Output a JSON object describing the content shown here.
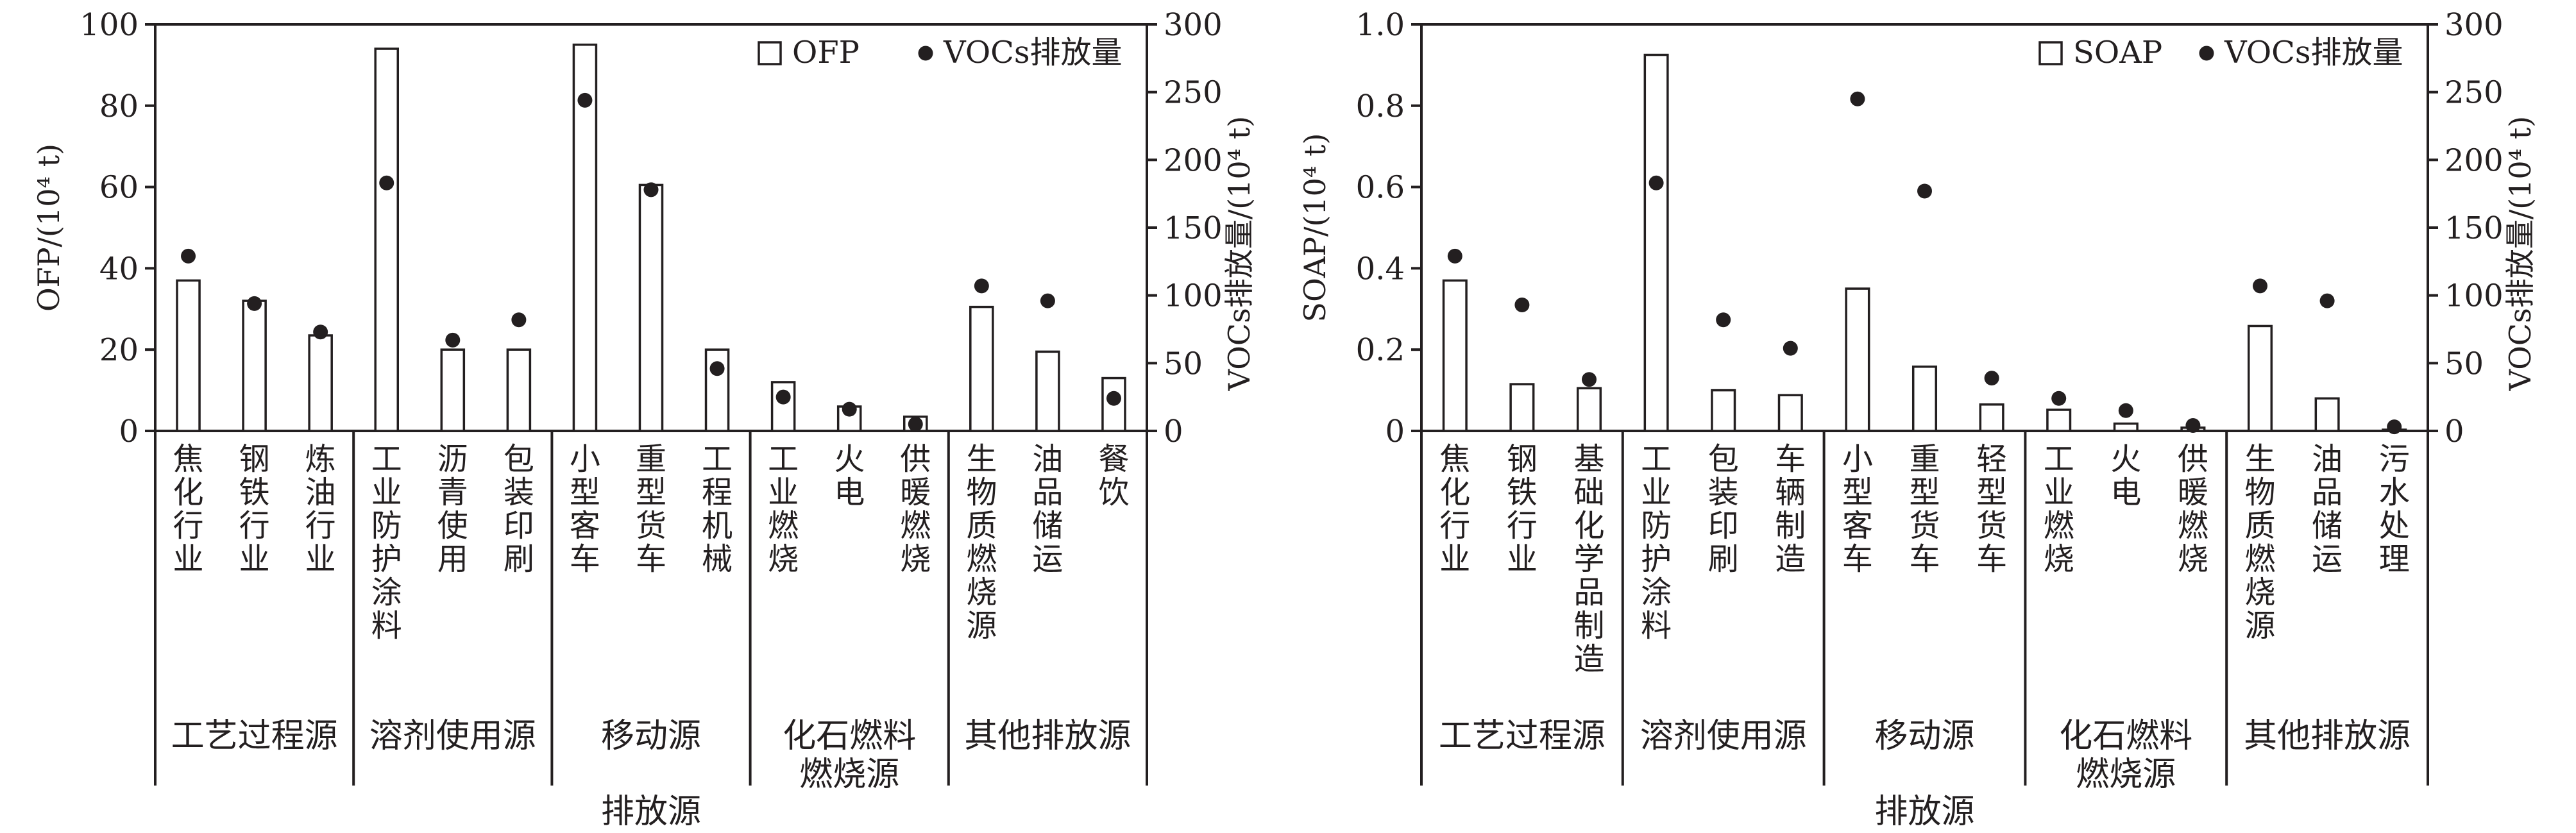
{
  "chart_data": [
    {
      "type": "bar",
      "title": "",
      "ylabel": "OFP/(10⁴ t)",
      "y2label": "VOCs排放量/(10⁴ t)",
      "xlabel": "排放源",
      "ylim": [
        0,
        100
      ],
      "y2lim": [
        0,
        300
      ],
      "yticks": [
        "0",
        "20",
        "40",
        "60",
        "80",
        "100"
      ],
      "y2ticks": [
        "0",
        "50",
        "100",
        "150",
        "200",
        "250",
        "300"
      ],
      "legend_position": "top-right",
      "legend": {
        "bar": "OFP",
        "dot": "VOCs排放量"
      },
      "categories": [
        "焦化行业",
        "钢铁行业",
        "炼油行业",
        "工业防护涂料",
        "沥青使用",
        "包装印刷",
        "小型客车",
        "重型货车",
        "工程机械",
        "工业燃烧",
        "火电",
        "供暖燃烧",
        "生物质燃烧源",
        "油品储运",
        "餐饮"
      ],
      "groups": [
        {
          "label": [
            "工艺过程源"
          ],
          "count": 3
        },
        {
          "label": [
            "溶剂使用源"
          ],
          "count": 3
        },
        {
          "label": [
            "移动源"
          ],
          "count": 3
        },
        {
          "label": [
            "化石燃料",
            "燃烧源"
          ],
          "count": 3
        },
        {
          "label": [
            "其他排放源"
          ],
          "count": 3
        }
      ],
      "series": [
        {
          "name": "OFP",
          "kind": "bar",
          "axis": "left",
          "values": [
            37,
            32,
            23.5,
            94,
            20,
            20,
            95,
            60.5,
            20,
            12,
            6,
            3.5,
            30.5,
            19.5,
            13
          ]
        },
        {
          "name": "VOCs排放量",
          "kind": "dot",
          "axis": "right",
          "values": [
            129,
            94,
            73,
            183,
            67,
            82,
            244,
            178,
            46,
            25,
            16,
            5,
            107,
            96,
            24
          ]
        }
      ]
    },
    {
      "type": "bar",
      "title": "",
      "ylabel": "SOAP/(10⁴ t)",
      "y2label": "VOCs排放量/(10⁴ t)",
      "xlabel": "排放源",
      "ylim": [
        0,
        1.0
      ],
      "y2lim": [
        0,
        300
      ],
      "yticks": [
        "0",
        "0.2",
        "0.4",
        "0.6",
        "0.8",
        "1.0"
      ],
      "y2ticks": [
        "0",
        "50",
        "100",
        "150",
        "200",
        "250",
        "300"
      ],
      "legend_position": "top-right",
      "legend": {
        "bar": "SOAP",
        "dot": "VOCs排放量"
      },
      "categories": [
        "焦化行业",
        "钢铁行业",
        "基础化学品制造",
        "工业防护涂料",
        "包装印刷",
        "车辆制造",
        "小型客车",
        "重型货车",
        "轻型货车",
        "工业燃烧",
        "火电",
        "供暖燃烧",
        "生物质燃烧源",
        "油品储运",
        "污水处理"
      ],
      "groups": [
        {
          "label": [
            "工艺过程源"
          ],
          "count": 3
        },
        {
          "label": [
            "溶剂使用源"
          ],
          "count": 3
        },
        {
          "label": [
            "移动源"
          ],
          "count": 3
        },
        {
          "label": [
            "化石燃料",
            "燃烧源"
          ],
          "count": 3
        },
        {
          "label": [
            "其他排放源"
          ],
          "count": 3
        }
      ],
      "series": [
        {
          "name": "SOAP",
          "kind": "bar",
          "axis": "left",
          "values": [
            0.37,
            0.115,
            0.105,
            0.925,
            0.1,
            0.088,
            0.35,
            0.158,
            0.065,
            0.052,
            0.018,
            0.008,
            0.258,
            0.08,
            0.003
          ]
        },
        {
          "name": "VOCs排放量",
          "kind": "dot",
          "axis": "right",
          "values": [
            129,
            93,
            38,
            183,
            82,
            61,
            245,
            177,
            39,
            24,
            15,
            4,
            107,
            96,
            3
          ]
        }
      ]
    }
  ]
}
